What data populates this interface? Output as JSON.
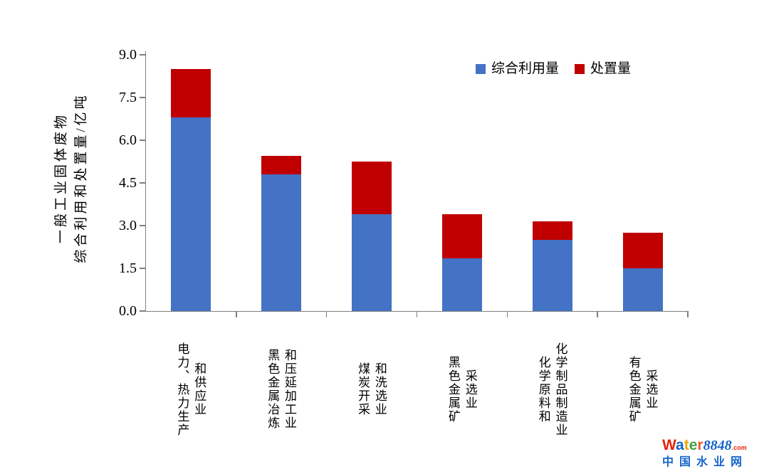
{
  "chart_data": {
    "type": "bar",
    "stacked": true,
    "grid": false,
    "legend_position": "top-right-inside",
    "axis_color": "#7f7f7f",
    "ylabel_lines": [
      "一般工业固体废物",
      "综合利用和处置量/亿吨"
    ],
    "ylim": [
      0.0,
      9.0
    ],
    "ytick_step": 1.5,
    "yticks": [
      "0.0",
      "1.5",
      "3.0",
      "4.5",
      "6.0",
      "7.5",
      "9.0"
    ],
    "categories": [
      {
        "label": "电力、热力生产和供应业",
        "lines": [
          "电力、热力生产",
          "和供应业"
        ]
      },
      {
        "label": "黑色金属冶炼和压延加工业",
        "lines": [
          "黑色金属冶炼",
          "和压延加工业"
        ]
      },
      {
        "label": "煤炭开采和洗选业",
        "lines": [
          "煤炭开采",
          "和洗选业"
        ]
      },
      {
        "label": "黑色金属矿采选业",
        "lines": [
          "黑色金属矿",
          "采选业"
        ]
      },
      {
        "label": "化学原料和化学制品制造业",
        "lines": [
          "化学原料和",
          "化学制品制造业"
        ]
      },
      {
        "label": "有色金属矿采选业",
        "lines": [
          "有色金属矿",
          "采选业"
        ]
      }
    ],
    "series": [
      {
        "name": "综合利用量",
        "color": "#4472C4",
        "values": [
          6.8,
          4.8,
          3.4,
          1.85,
          2.5,
          1.5
        ]
      },
      {
        "name": "处置量",
        "color": "#C00000",
        "values": [
          1.7,
          0.65,
          1.85,
          1.55,
          0.65,
          1.25
        ]
      }
    ],
    "totals": [
      8.5,
      5.45,
      5.25,
      3.4,
      3.15,
      2.75
    ]
  },
  "watermark": {
    "brand_letters": [
      {
        "ch": "W",
        "color": "#e62309"
      },
      {
        "ch": "a",
        "color": "#1565c8"
      },
      {
        "ch": "t",
        "color": "#f0a500"
      },
      {
        "ch": "e",
        "color": "#43a047"
      },
      {
        "ch": "r",
        "color": "#f05a28"
      }
    ],
    "brand_number": "8848",
    "brand_number_color": "#1565c8",
    "brand_suffix": ".com",
    "brand_suffix_color": "#e62309",
    "subtitle": "中国水业网",
    "subtitle_color": "#1565c8"
  }
}
